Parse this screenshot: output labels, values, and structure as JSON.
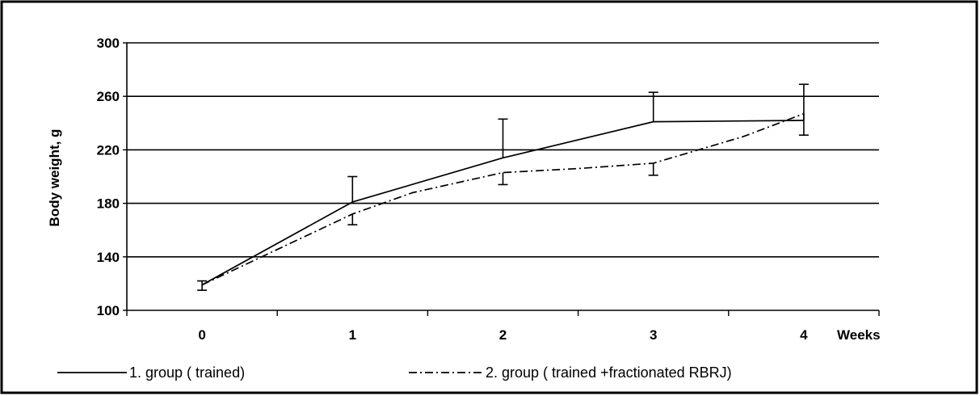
{
  "chart_data": {
    "type": "line",
    "title": "",
    "xlabel": "Weeks",
    "ylabel": "Body weight, g",
    "ylim": [
      100,
      300
    ],
    "yticks": [
      100,
      140,
      180,
      220,
      260,
      300
    ],
    "grid": "horizontal",
    "legend_position": "bottom",
    "series": [
      {
        "name": "1. group ( trained)",
        "style": "solid",
        "color": "#000000",
        "points": [
          {
            "x": "0",
            "y": 119,
            "err": 3
          },
          {
            "x": "1",
            "y": 181,
            "err": 19
          },
          {
            "x": "2",
            "y": 214,
            "err": 29
          },
          {
            "x": "3",
            "y": 241,
            "err": 22
          },
          {
            "x": "4",
            "y": 242,
            "err": 27
          }
        ]
      },
      {
        "name": "2. group ( trained +fractionated RBRJ)",
        "style": "dash-dot",
        "color": "#000000",
        "points": [
          {
            "x": "0",
            "y": 119,
            "err": 4
          },
          {
            "x": "1",
            "y": 172,
            "err": 8
          },
          {
            "x": "1.4",
            "y": 188
          },
          {
            "x": "2",
            "y": 203,
            "err": 9
          },
          {
            "x": "2.5",
            "y": 206
          },
          {
            "x": "3",
            "y": 210,
            "err": 9
          },
          {
            "x": "3.6",
            "y": 230
          },
          {
            "x": "4",
            "y": 247,
            "err": 16
          }
        ]
      }
    ],
    "x_categories": [
      "0",
      "1",
      "2",
      "3",
      "4"
    ]
  }
}
